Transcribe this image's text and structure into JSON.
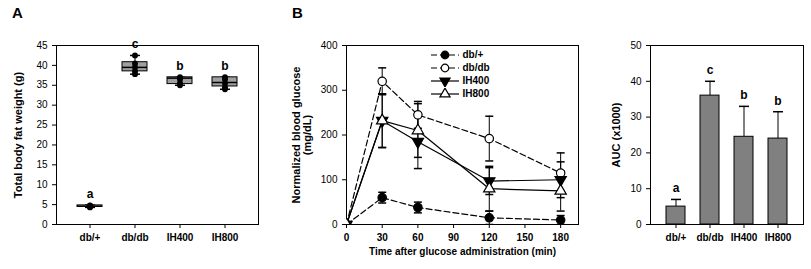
{
  "chart_data": [
    {
      "type": "box",
      "panel": "A",
      "ylabel": "Total body fat weight (g)",
      "categories": [
        "db/+",
        "db/db",
        "IH400",
        "IH800"
      ],
      "ylim": [
        0,
        45
      ],
      "yticks": [
        0,
        5,
        10,
        15,
        20,
        25,
        30,
        35,
        40,
        45
      ],
      "color": "#a0a0a0",
      "boxes": [
        {
          "min": 4.3,
          "q1": 4.4,
          "median": 4.6,
          "q3": 4.8,
          "max": 4.9
        },
        {
          "min": 37.8,
          "q1": 38.5,
          "median": 39.5,
          "q3": 40.8,
          "max": 42.5
        },
        {
          "min": 35.0,
          "q1": 35.3,
          "median": 36.8,
          "q3": 37.0,
          "max": 37.0
        },
        {
          "min": 34.0,
          "q1": 34.7,
          "median": 35.7,
          "q3": 37.0,
          "max": 37.0
        }
      ],
      "points": [
        [
          4.3,
          4.5,
          4.6,
          4.7,
          4.8
        ],
        [
          37.8,
          38.5,
          39.5,
          40.5,
          42.5
        ],
        [
          35.0,
          35.5,
          36.5,
          37.0
        ],
        [
          34.0,
          34.5,
          35.5,
          36.5,
          37.0
        ]
      ],
      "significance": [
        "a",
        "c",
        "b",
        "b"
      ]
    },
    {
      "type": "line",
      "panel": "B",
      "xlabel": "Time after glucose administration (min)",
      "ylabel": "Normalized blood glucose\n(mg/dL)",
      "x": [
        0,
        30,
        60,
        120,
        180
      ],
      "xlim": [
        0,
        195
      ],
      "xticks": [
        0,
        30,
        60,
        90,
        120,
        150,
        180
      ],
      "ylim": [
        0,
        400
      ],
      "yticks": [
        0,
        100,
        200,
        300,
        400
      ],
      "legend": "top",
      "series": [
        {
          "name": "db/+",
          "color": "#000000",
          "marker": "circle",
          "line_style": "dashed",
          "values": [
            0,
            60,
            38,
            15,
            10
          ],
          "errors": [
            0,
            12,
            12,
            15,
            10
          ]
        },
        {
          "name": "db/db",
          "color": "#000000",
          "marker": "open circle",
          "line_style": "dashed",
          "values": [
            0,
            320,
            245,
            192,
            115
          ],
          "errors": [
            0,
            30,
            30,
            50,
            45
          ]
        },
        {
          "name": "IH400",
          "color": "#000000",
          "marker": "triangle-down",
          "line_style": "solid",
          "values": [
            0,
            232,
            185,
            97,
            100
          ],
          "errors": [
            0,
            60,
            60,
            30,
            40
          ]
        },
        {
          "name": "IH800",
          "color": "#000000",
          "marker": "open triangle",
          "line_style": "solid",
          "values": [
            0,
            232,
            210,
            80,
            75
          ],
          "errors": [
            0,
            60,
            60,
            50,
            45
          ]
        }
      ]
    },
    {
      "type": "bar",
      "ylabel": "AUC (x1000)",
      "categories": [
        "db/+",
        "db/db",
        "IH400",
        "IH800"
      ],
      "values": [
        5,
        36,
        24.5,
        24
      ],
      "errors": [
        2,
        4,
        8.5,
        7.5
      ],
      "ylim": [
        0,
        50
      ],
      "yticks": [
        0,
        10,
        20,
        30,
        40,
        50
      ],
      "color": "#808080",
      "significance": [
        "a",
        "c",
        "b",
        "b"
      ]
    }
  ]
}
